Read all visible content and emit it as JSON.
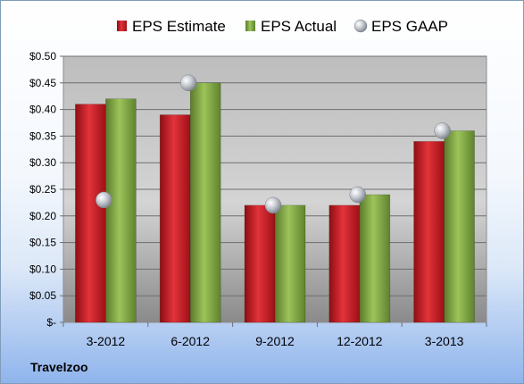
{
  "company": "Travelzoo",
  "chart_data": {
    "type": "bar",
    "categories": [
      "3-2012",
      "6-2012",
      "9-2012",
      "12-2012",
      "3-2013"
    ],
    "series": [
      {
        "name": "EPS Estimate",
        "values": [
          0.41,
          0.39,
          0.22,
          0.22,
          0.34
        ],
        "color": "#c0161c"
      },
      {
        "name": "EPS Actual",
        "values": [
          0.42,
          0.45,
          0.22,
          0.24,
          0.36
        ],
        "color": "#7fa442"
      },
      {
        "name": "EPS GAAP",
        "values": [
          0.23,
          0.45,
          0.22,
          0.24,
          0.36
        ],
        "color": "#b9bec6",
        "marker": "sphere"
      }
    ],
    "ylim": [
      0,
      0.5
    ],
    "yticks": [
      0,
      0.05,
      0.1,
      0.15,
      0.2,
      0.25,
      0.3,
      0.35,
      0.4,
      0.45,
      0.5
    ],
    "ytick_labels": [
      "$-",
      "$0.05",
      "$0.10",
      "$0.15",
      "$0.20",
      "$0.25",
      "$0.30",
      "$0.35",
      "$0.40",
      "$0.45",
      "$0.50"
    ],
    "grid": true,
    "legend": "top"
  }
}
